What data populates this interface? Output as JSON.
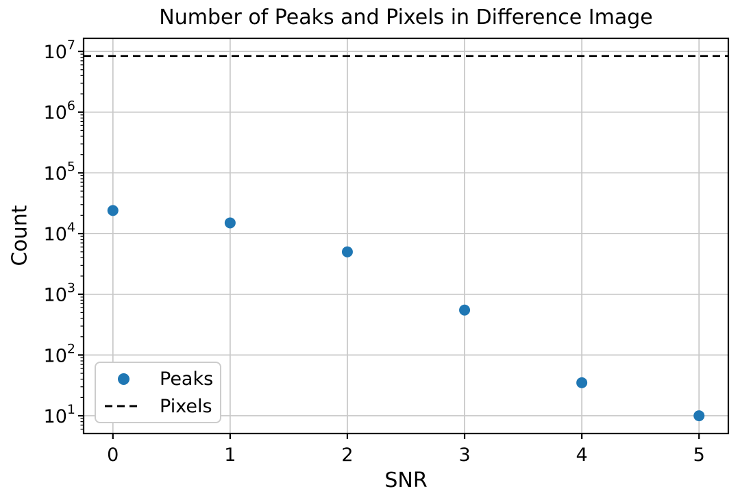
{
  "chart_data": {
    "type": "scatter",
    "title": "Number of Peaks and Pixels in Difference Image",
    "xlabel": "SNR",
    "ylabel": "Count",
    "yscale": "log",
    "grid": true,
    "legend_position": "lower left",
    "xlim": [
      -0.25,
      5.25
    ],
    "ylim": [
      5.1,
      16400000
    ],
    "x_ticks": [
      0,
      1,
      2,
      3,
      4,
      5
    ],
    "y_tick_exponents": [
      1,
      2,
      3,
      4,
      5,
      6,
      7
    ],
    "x": [
      0,
      1,
      2,
      3,
      4,
      5
    ],
    "series": [
      {
        "name": "Peaks",
        "kind": "scatter",
        "marker": "circle",
        "color": "#1f77b4",
        "values": [
          24000,
          15000,
          5000,
          550,
          35,
          10
        ]
      },
      {
        "name": "Pixels",
        "kind": "hline",
        "linestyle": "dashed",
        "color": "#000000",
        "value": 8400000
      }
    ],
    "colors": {
      "grid": "#c9c9c9",
      "spine": "#000000",
      "text": "#000000",
      "legend_border": "#cccccc",
      "background": "#ffffff"
    }
  }
}
